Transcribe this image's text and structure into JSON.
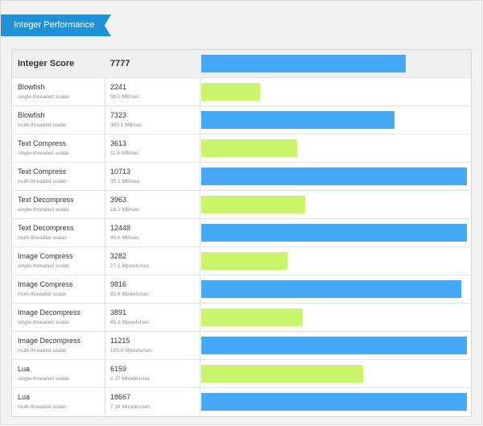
{
  "section": {
    "title": "Integer Performance"
  },
  "colors": {
    "single_threaded": "#c8f56a",
    "multi_threaded": "#45a9f5",
    "ribbon": "#1f91d9"
  },
  "summary": {
    "label": "Integer Score",
    "score": "7777",
    "bar_fraction": 0.7686
  },
  "rows": [
    {
      "name": "Blowfish",
      "mode": "single-threaded scalar",
      "score": "2241",
      "rate": "98.5 MB/sec",
      "bar_fraction": 0.2197,
      "kind": "single"
    },
    {
      "name": "Blowfish",
      "mode": "multi-threaded scalar",
      "score": "7323",
      "rate": "300.1 MB/sec",
      "bar_fraction": 0.7273,
      "kind": "multi"
    },
    {
      "name": "Text Compress",
      "mode": "single-threaded scalar",
      "score": "3613",
      "rate": "11.6 MB/sec",
      "bar_fraction": 0.3606,
      "kind": "single"
    },
    {
      "name": "Text Compress",
      "mode": "multi-threaded scalar",
      "score": "10713",
      "rate": "35.1 MB/sec",
      "bar_fraction": 1.0,
      "kind": "multi"
    },
    {
      "name": "Text Decompress",
      "mode": "single-threaded scalar",
      "score": "3963",
      "rate": "16.3 MB/sec",
      "bar_fraction": 0.3909,
      "kind": "single"
    },
    {
      "name": "Text Decompress",
      "mode": "multi-threaded scalar",
      "score": "12448",
      "rate": "49.6 MB/sec",
      "bar_fraction": 1.0,
      "kind": "multi"
    },
    {
      "name": "Image Compress",
      "mode": "single-threaded scalar",
      "score": "3282",
      "rate": "27.1 Mpixels/sec",
      "bar_fraction": 0.3242,
      "kind": "single"
    },
    {
      "name": "Image Compress",
      "mode": "multi-threaded scalar",
      "score": "9816",
      "rate": "82.6 Mpixels/sec",
      "bar_fraction": 0.9788,
      "kind": "multi"
    },
    {
      "name": "Image Decompress",
      "mode": "single-threaded scalar",
      "score": "3891",
      "rate": "65.3 Mpixels/sec",
      "bar_fraction": 0.3818,
      "kind": "single"
    },
    {
      "name": "Image Decompress",
      "mode": "multi-threaded scalar",
      "score": "11215",
      "rate": "183.0 Mpixels/sec",
      "bar_fraction": 1.0,
      "kind": "multi"
    },
    {
      "name": "Lua",
      "mode": "single-threaded scalar",
      "score": "6159",
      "rate": "2.37 Mnodes/sec",
      "bar_fraction": 0.6091,
      "kind": "single"
    },
    {
      "name": "Lua",
      "mode": "multi-threaded scalar",
      "score": "18667",
      "rate": "7.18 Mnodes/sec",
      "bar_fraction": 1.0,
      "kind": "multi"
    }
  ]
}
